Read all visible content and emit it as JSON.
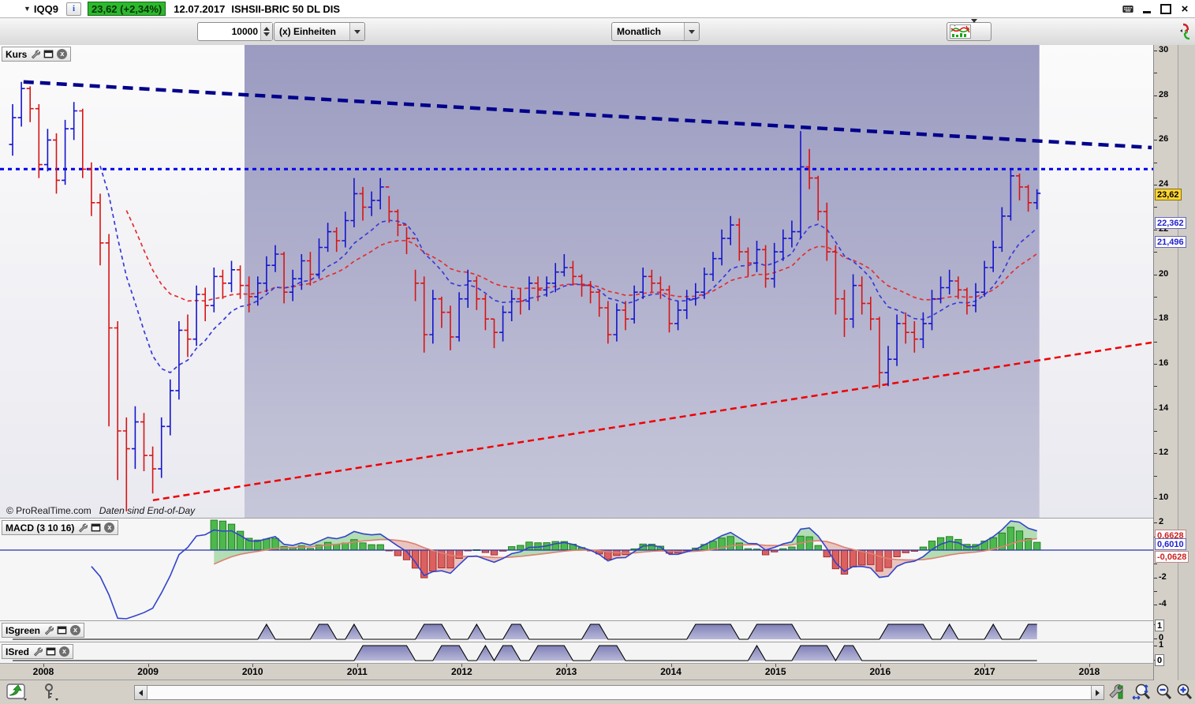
{
  "window": {
    "symbol": "IQQ9",
    "info_icon": "i",
    "price_badge": "23,62 (+2,34%)",
    "badge_color": "#2db92d",
    "date": "12.07.2017",
    "instrument": "ISHSII-BRIC 50 DL DIS"
  },
  "toolbar": {
    "units_value": "10000",
    "units_type": "(x) Einheiten",
    "period": "Monatlich"
  },
  "panels": {
    "price_label": "Kurs",
    "macd_label": "MACD (3 10 16)",
    "isgreen_label": "ISgreen",
    "isred_label": "ISred"
  },
  "watermark": {
    "copyright": "© ProRealTime.com",
    "note": "Daten sind End-of-Day"
  },
  "badges": {
    "price_last": "23,62",
    "ma_fast": "22,362",
    "ma_slow": "21,496",
    "macd_signal": "0,6628",
    "macd_line": "0,6010",
    "macd_hist": "-0,0628",
    "isgreen_last": "1",
    "isred_last": "0"
  },
  "axes": {
    "price_ticks": [
      30,
      28,
      26,
      24,
      22,
      20,
      18,
      16,
      14,
      12,
      10
    ],
    "macd_ticks": [
      2,
      -2,
      -4
    ],
    "is_ticks": [
      1,
      0
    ],
    "years": [
      2008,
      2009,
      2010,
      2011,
      2012,
      2013,
      2014,
      2015,
      2016,
      2017,
      2018
    ]
  },
  "icons": {
    "dropdown_arrow": "▼",
    "close_glyph": "x",
    "window_close": "×"
  },
  "chart_data": {
    "type": "bar",
    "subtype": "ohlc-bars",
    "interval": "monthly",
    "start_month": "2007-10",
    "first_open": 25.8,
    "closes": [
      27.0,
      28.3,
      27.4,
      24.9,
      26.0,
      24.2,
      26.5,
      27.3,
      24.7,
      23.2,
      21.4,
      17.6,
      13.0,
      12.2,
      13.4,
      11.9,
      11.3,
      13.2,
      14.8,
      17.5,
      17.1,
      19.1,
      18.6,
      19.9,
      19.6,
      20.2,
      19.5,
      19.0,
      19.6,
      20.4,
      20.9,
      19.2,
      19.8,
      20.6,
      20.0,
      21.2,
      21.9,
      21.5,
      22.4,
      23.6,
      23.0,
      23.3,
      23.9,
      22.8,
      22.2,
      21.6,
      19.6,
      17.3,
      18.9,
      18.3,
      17.2,
      18.9,
      19.7,
      18.9,
      18.0,
      17.4,
      18.3,
      18.9,
      18.8,
      19.6,
      19.3,
      19.6,
      20.1,
      20.3,
      19.9,
      19.5,
      19.2,
      18.5,
      17.3,
      18.4,
      18.0,
      19.2,
      19.9,
      19.6,
      19.3,
      17.8,
      18.4,
      18.9,
      19.2,
      20.0,
      20.7,
      21.6,
      22.2,
      21.0,
      20.5,
      21.1,
      19.8,
      21.0,
      21.6,
      21.9,
      24.8,
      24.3,
      22.8,
      21.0,
      18.9,
      18.0,
      19.5,
      18.7,
      18.0,
      15.6,
      16.2,
      17.8,
      17.4,
      17.1,
      17.8,
      18.9,
      19.4,
      19.7,
      19.3,
      18.6,
      19.2,
      20.3,
      21.2,
      22.6,
      24.4,
      23.9,
      23.2,
      23.62
    ],
    "highs": [
      27.6,
      28.6,
      28.4,
      27.6,
      26.5,
      26.3,
      26.9,
      27.7,
      27.4,
      25.0,
      23.6,
      21.8,
      17.9,
      13.6,
      14.1,
      13.8,
      12.3,
      13.6,
      15.3,
      17.9,
      18.2,
      19.5,
      19.4,
      20.3,
      20.2,
      20.6,
      20.4,
      19.9,
      19.9,
      20.8,
      21.3,
      21.0,
      20.2,
      20.9,
      21.0,
      21.6,
      22.3,
      22.1,
      22.8,
      24.3,
      23.9,
      23.7,
      24.3,
      23.5,
      22.9,
      22.1,
      20.2,
      19.9,
      19.3,
      19.0,
      18.6,
      19.2,
      20.2,
      19.9,
      19.1,
      18.0,
      18.6,
      19.3,
      19.4,
      19.9,
      19.9,
      19.9,
      20.5,
      20.9,
      20.6,
      20.0,
      19.7,
      19.3,
      18.8,
      18.7,
      18.8,
      19.5,
      20.3,
      20.2,
      19.9,
      19.5,
      18.8,
      19.3,
      19.6,
      20.3,
      21.0,
      22.0,
      22.6,
      22.5,
      21.2,
      21.5,
      21.3,
      21.4,
      22.0,
      22.4,
      26.4,
      25.6,
      24.4,
      23.2,
      21.3,
      19.3,
      20.0,
      19.9,
      19.0,
      18.1,
      16.8,
      18.2,
      18.3,
      17.9,
      18.3,
      19.3,
      19.9,
      20.2,
      19.9,
      19.4,
      19.6,
      20.6,
      21.5,
      23.0,
      24.7,
      24.5,
      24.0,
      23.8
    ],
    "lows": [
      25.3,
      26.6,
      26.8,
      24.3,
      24.6,
      23.6,
      24.0,
      26.0,
      24.3,
      22.6,
      20.4,
      13.2,
      10.8,
      9.4,
      11.3,
      11.2,
      10.2,
      10.9,
      12.8,
      14.4,
      16.3,
      16.8,
      17.9,
      18.3,
      18.9,
      19.2,
      18.9,
      18.3,
      18.6,
      19.2,
      20.1,
      18.7,
      18.8,
      19.3,
      19.5,
      19.8,
      21.0,
      21.0,
      21.2,
      22.1,
      22.4,
      22.6,
      22.9,
      22.3,
      21.7,
      20.9,
      18.8,
      16.5,
      16.9,
      17.6,
      16.6,
      17.0,
      18.5,
      18.4,
      17.5,
      16.7,
      17.0,
      17.9,
      18.2,
      18.4,
      18.8,
      19.0,
      19.2,
      19.9,
      19.5,
      19.0,
      18.7,
      18.1,
      16.9,
      17.0,
      17.5,
      17.8,
      18.9,
      19.2,
      18.9,
      17.4,
      17.5,
      18.0,
      18.6,
      18.9,
      19.7,
      20.4,
      21.3,
      20.6,
      19.9,
      20.1,
      19.4,
      19.4,
      20.6,
      21.2,
      21.6,
      23.8,
      22.4,
      20.6,
      18.2,
      17.2,
      17.6,
      18.2,
      17.5,
      14.9,
      15.0,
      15.9,
      16.9,
      16.5,
      16.7,
      17.5,
      18.7,
      19.1,
      18.9,
      18.2,
      18.3,
      19.0,
      20.1,
      21.0,
      22.4,
      23.3,
      22.8,
      22.9
    ],
    "overlays": {
      "ma_fast": {
        "kind": "ema",
        "period": 10,
        "color": "#3a3ad6"
      },
      "ma_slow": {
        "kind": "ema",
        "period": 21,
        "color": "#e03030"
      },
      "trendline_down": {
        "from_frac": 0.015,
        "from_price": 28.6,
        "to_frac": 1.0,
        "to_price": 25.66,
        "color": "#00008b"
      },
      "hline_price": 24.7,
      "hline_color": "#0000ee",
      "trendline_up": {
        "from_frac": 0.128,
        "from_price": 9.9,
        "to_frac": 1.0,
        "to_price": 16.95,
        "color": "#ee0000"
      },
      "shaded_region_frac": [
        0.208,
        0.902
      ]
    },
    "macd_params": {
      "fast": 3,
      "slow": 10,
      "signal": 16
    },
    "last_markers": {
      "price": 23.62,
      "ma_fast": 22.362,
      "ma_slow": 21.496,
      "macd_line": 0.601,
      "macd_signal": 0.6628,
      "macd_hist": -0.0628,
      "isgreen": 1,
      "isred": 0
    },
    "isgreen_ones": [
      29,
      35,
      36,
      39,
      47,
      48,
      49,
      53,
      57,
      58,
      66,
      67,
      78,
      79,
      80,
      81,
      82,
      85,
      86,
      87,
      88,
      89,
      100,
      101,
      102,
      103,
      104,
      107,
      112,
      116,
      117
    ],
    "isred_ones": [
      40,
      41,
      42,
      43,
      44,
      45,
      49,
      50,
      51,
      54,
      56,
      57,
      60,
      61,
      62,
      63,
      67,
      68,
      69,
      85,
      90,
      91,
      92,
      93,
      95,
      96
    ],
    "colors": {
      "up": "#1414cc",
      "down": "#d81414",
      "hist_pos": "#4db84d",
      "hist_pos_edge": "#1d7a1d",
      "hist_neg": "#db6060",
      "hist_neg_edge": "#a22626",
      "macd_line": "#3344cc",
      "signal_line": "#dd8070",
      "is_fill_top": "#8080b8",
      "is_fill_bottom": "#b8b8d8"
    }
  }
}
